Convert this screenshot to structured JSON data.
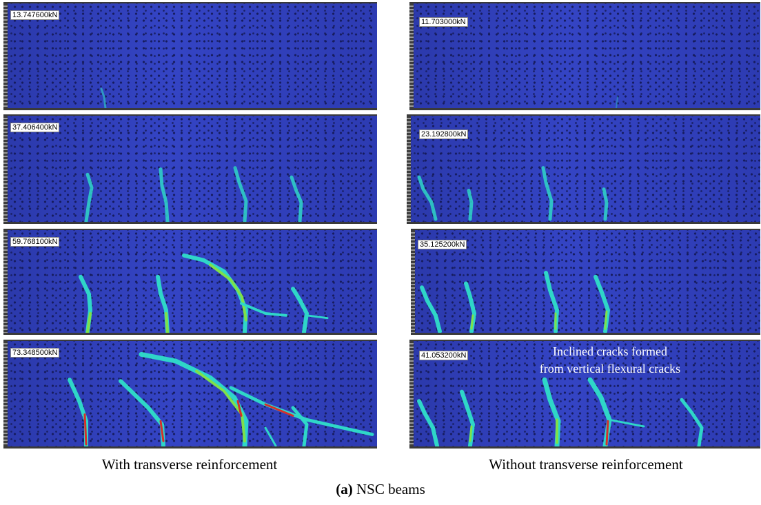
{
  "left_column": {
    "caption": "With transverse reinforcement",
    "panels": [
      {
        "load_label": "13.747600kN"
      },
      {
        "load_label": "37.406400kN"
      },
      {
        "load_label": "59.768100kN"
      },
      {
        "load_label": "73.348500kN"
      }
    ]
  },
  "right_column": {
    "caption": "Without transverse reinforcement",
    "panels": [
      {
        "load_label": "11.703000kN"
      },
      {
        "load_label": "23.192800kN"
      },
      {
        "load_label": "35.125200kN"
      },
      {
        "load_label": "41.053200kN"
      }
    ],
    "annotation_line1": "Inclined cracks formed",
    "annotation_line2": "from vertical flexural cracks"
  },
  "figure_caption": {
    "label": "(a)",
    "text": " NSC beams"
  },
  "colors": {
    "background_blue": "#2f3fb8",
    "crack_low": "#2fd6c8",
    "crack_mid": "#7fe04a",
    "crack_high": "#d6302a"
  }
}
